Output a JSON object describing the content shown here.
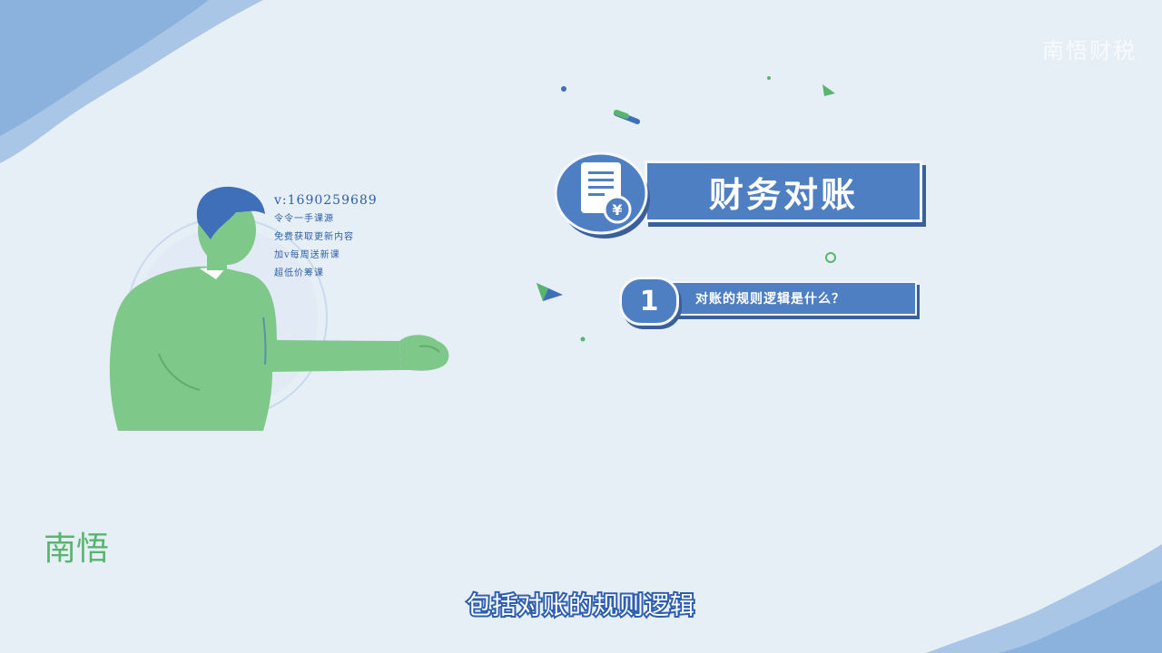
{
  "watermark": {
    "text": "南悟财税"
  },
  "contact": {
    "lines": [
      "v:1690259689",
      "令令一手课源",
      "免费获取更新内容",
      "加v每周送新课",
      "超低价筹课"
    ]
  },
  "title_card": {
    "title": "财务对账"
  },
  "items": [
    {
      "number": "1",
      "text": "对账的规则逻辑是什么？"
    }
  ],
  "logo": {
    "text": "南悟"
  },
  "subtitle": {
    "text": "包括对账的规则逻辑"
  },
  "colors": {
    "background": "#e6eef6",
    "banner_blue": "#4f7fc3",
    "shadow_blue": "#3a5f9a",
    "person_green": "#7ec98a",
    "hair_blue": "#3f6fb8",
    "brush_blue": "#6d9bd0",
    "logo_green": "#58b56e"
  }
}
